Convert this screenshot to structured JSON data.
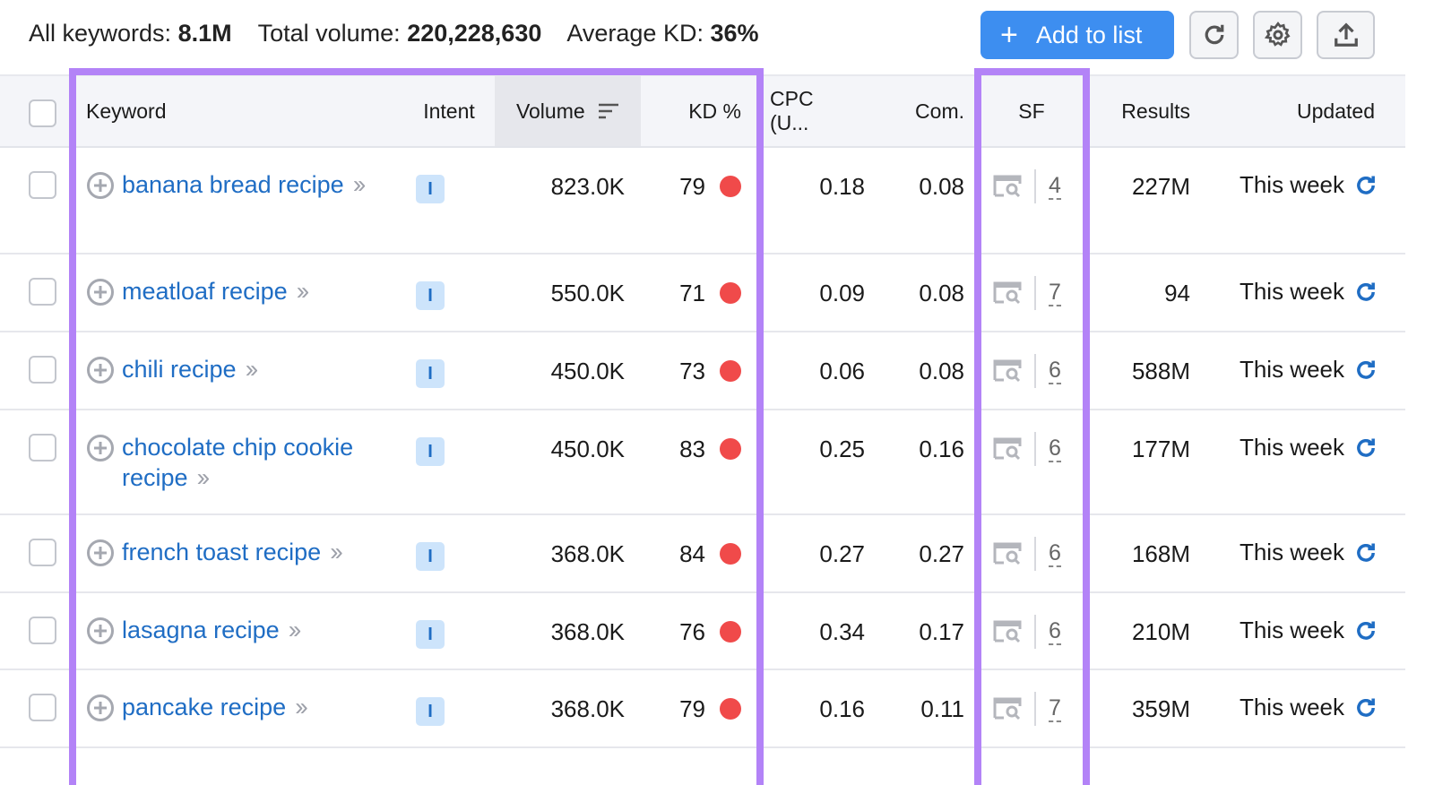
{
  "summary": {
    "all_keywords_label": "All keywords:",
    "all_keywords": "8.1M",
    "total_volume_label": "Total volume:",
    "total_volume": "220,228,630",
    "avg_kd_label": "Average KD:",
    "avg_kd": "36%"
  },
  "toolbar": {
    "add_to_list": "Add to list",
    "plus": "+"
  },
  "columns": {
    "keyword": "Keyword",
    "intent": "Intent",
    "volume": "Volume",
    "kd": "KD %",
    "cpc": "CPC (U...",
    "com": "Com.",
    "sf": "SF",
    "results": "Results",
    "updated": "Updated"
  },
  "rows": [
    {
      "keyword": "banana bread recipe",
      "intent": "I",
      "volume": "823.0K",
      "kd": "79",
      "cpc": "0.18",
      "com": "0.08",
      "sf": "4",
      "results": "227M",
      "updated": "This week"
    },
    {
      "keyword": "meatloaf recipe",
      "intent": "I",
      "volume": "550.0K",
      "kd": "71",
      "cpc": "0.09",
      "com": "0.08",
      "sf": "7",
      "results": "94",
      "updated": "This week"
    },
    {
      "keyword": "chili recipe",
      "intent": "I",
      "volume": "450.0K",
      "kd": "73",
      "cpc": "0.06",
      "com": "0.08",
      "sf": "6",
      "results": "588M",
      "updated": "This week"
    },
    {
      "keyword": "chocolate chip cookie recipe",
      "intent": "I",
      "volume": "450.0K",
      "kd": "83",
      "cpc": "0.25",
      "com": "0.16",
      "sf": "6",
      "results": "177M",
      "updated": "This week"
    },
    {
      "keyword": "french toast recipe",
      "intent": "I",
      "volume": "368.0K",
      "kd": "84",
      "cpc": "0.27",
      "com": "0.27",
      "sf": "6",
      "results": "168M",
      "updated": "This week"
    },
    {
      "keyword": "lasagna recipe",
      "intent": "I",
      "volume": "368.0K",
      "kd": "76",
      "cpc": "0.34",
      "com": "0.17",
      "sf": "6",
      "results": "210M",
      "updated": "This week"
    },
    {
      "keyword": "pancake recipe",
      "intent": "I",
      "volume": "368.0K",
      "kd": "79",
      "cpc": "0.16",
      "com": "0.11",
      "sf": "7",
      "results": "359M",
      "updated": "This week"
    }
  ],
  "colors": {
    "accent": "#3d8ef0",
    "link": "#1f6dc4",
    "kd_hard": "#f04a4a",
    "highlight": "#b383f7"
  }
}
